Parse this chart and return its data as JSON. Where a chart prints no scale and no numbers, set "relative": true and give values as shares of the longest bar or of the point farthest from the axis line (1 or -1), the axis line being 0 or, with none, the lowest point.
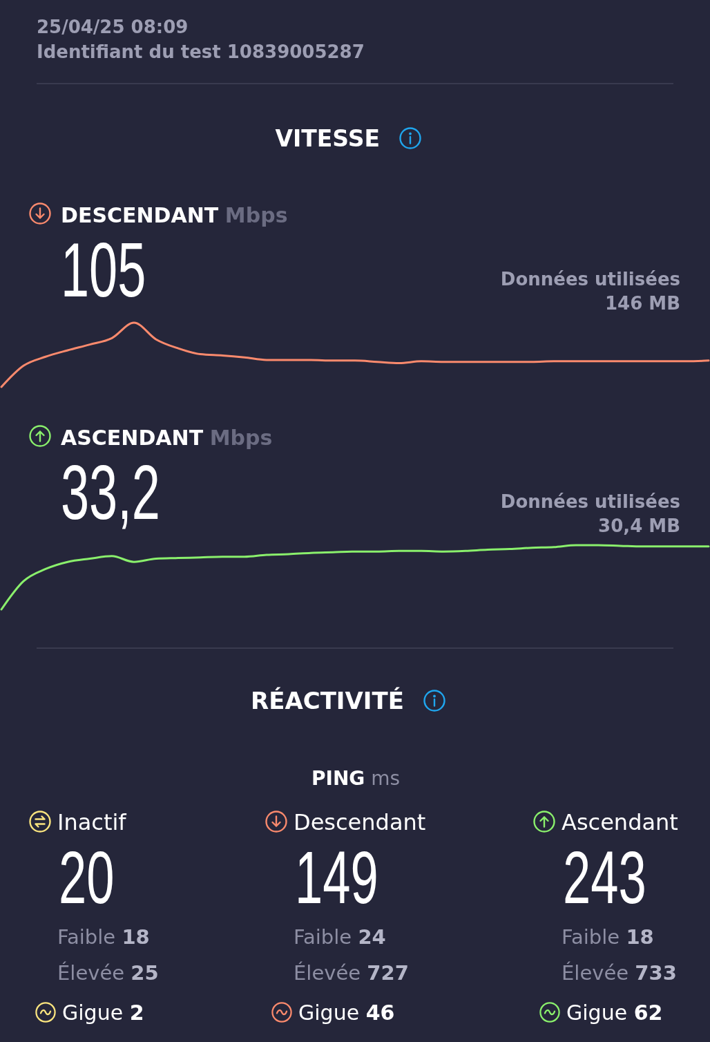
{
  "chart_data": [
    {
      "type": "other",
      "title": "VITESSE",
      "annotations": [
        "25/04/25 08:09",
        "Identifiant du test 10839005287"
      ]
    },
    {
      "type": "line",
      "title": "DESCENDANT",
      "ylabel": "Mbps",
      "relative": true,
      "categories": [
        null,
        null,
        null,
        null,
        null,
        null,
        null,
        null,
        null,
        null,
        null,
        null,
        null,
        null,
        null,
        null,
        null,
        null,
        null,
        null,
        null,
        null,
        null,
        null,
        null,
        null,
        null,
        null,
        null,
        null,
        null,
        null,
        null
      ],
      "series": [
        {
          "color": "#fb8a6d",
          "values": [
            0,
            0.33,
            0.47,
            0.57,
            0.66,
            0.76,
            1,
            0.74,
            0.6,
            0.51,
            0.49,
            0.46,
            0.42,
            0.42,
            0.42,
            0.41,
            0.41,
            0.39,
            0.37,
            0.4,
            0.39,
            0.39,
            0.39,
            0.39,
            0.39,
            0.4,
            0.4,
            0.4,
            0.4,
            0.4,
            0.4,
            0.4,
            0.41
          ]
        }
      ],
      "annotations": [
        "105",
        "Données utilisées",
        "146 MB"
      ]
    },
    {
      "type": "line",
      "title": "ASCENDANT",
      "ylabel": "Mbps",
      "relative": true,
      "categories": [
        null,
        null,
        null,
        null,
        null,
        null,
        null,
        null,
        null,
        null,
        null,
        null,
        null,
        null,
        null,
        null,
        null,
        null,
        null,
        null,
        null,
        null,
        null,
        null,
        null,
        null,
        null,
        null,
        null,
        null,
        null,
        null,
        null
      ],
      "series": [
        {
          "color": "#8af06c",
          "values": [
            0,
            0.44,
            0.63,
            0.74,
            0.79,
            0.83,
            0.74,
            0.79,
            0.8,
            0.81,
            0.82,
            0.82,
            0.85,
            0.86,
            0.88,
            0.89,
            0.9,
            0.9,
            0.91,
            0.91,
            0.9,
            0.91,
            0.93,
            0.94,
            0.96,
            0.97,
            1,
            1,
            0.99,
            0.98,
            0.98,
            0.98,
            0.98
          ]
        }
      ],
      "annotations": [
        "33,2",
        "Données utilisées",
        "30,4 MB"
      ]
    },
    {
      "type": "other",
      "title": "RÉACTIVITÉ",
      "subtitle": "PING ms"
    },
    {
      "type": "other",
      "title": "Inactif",
      "annotations": [
        "20",
        "Faible 18",
        "Élevée 25",
        "Gigue 2"
      ]
    },
    {
      "type": "other",
      "title": "Descendant",
      "annotations": [
        "149",
        "Faible 24",
        "Élevée 727",
        "Gigue 46"
      ]
    },
    {
      "type": "other",
      "title": "Ascendant",
      "annotations": [
        "243",
        "Faible 18",
        "Élevée 733",
        "Gigue 62"
      ]
    }
  ]
}
